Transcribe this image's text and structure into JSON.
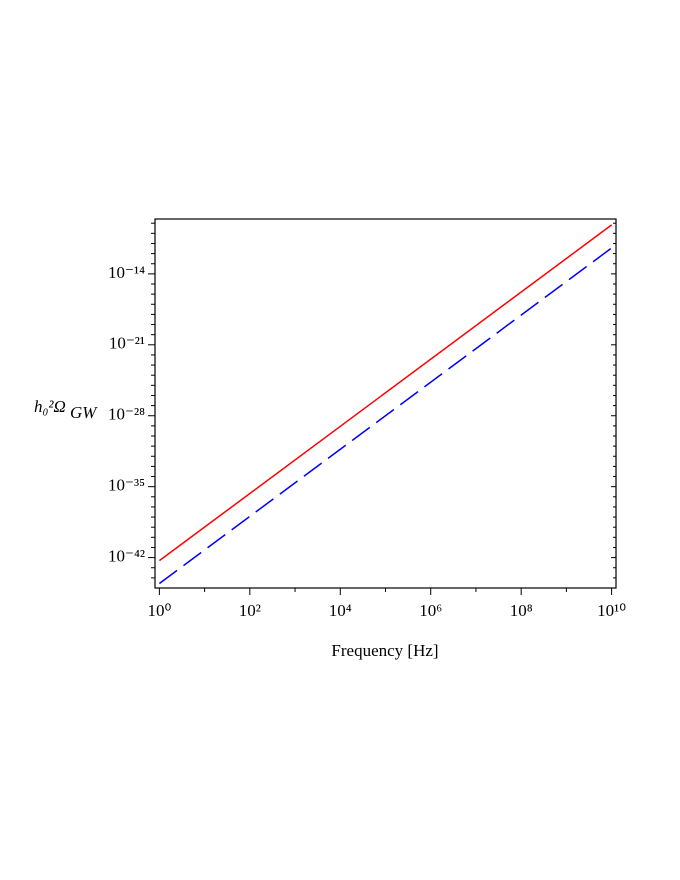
{
  "chart_data": {
    "type": "line",
    "xlabel": "Frequency  [Hz]",
    "ylabel": "h₀²Ω",
    "ylabel_sub": "GW",
    "x": [
      1,
      10000000000
    ],
    "series": [
      {
        "name": "solid",
        "color": "#ff0000",
        "dash": "none",
        "values": [
          5e-43,
          6.8e-10
        ]
      },
      {
        "name": "dashed",
        "color": "#0000ff",
        "dash": "22,8",
        "values": [
          2.8e-45,
          3.6e-12
        ]
      }
    ],
    "xscale": "log",
    "yscale": "log",
    "xlim": [
      0.8,
      12500000000
    ],
    "ylim": [
      1e-45,
      2.6e-09
    ],
    "xticks": [
      {
        "value": 1,
        "label": "10⁰"
      },
      {
        "value": 100,
        "label": "10²"
      },
      {
        "value": 10000,
        "label": "10⁴"
      },
      {
        "value": 1000000,
        "label": "10⁶"
      },
      {
        "value": 100000000,
        "label": "10⁸"
      },
      {
        "value": 10000000000,
        "label": "10¹⁰"
      }
    ],
    "xminor": [
      10,
      1000,
      100000,
      10000000,
      1000000000
    ],
    "yticks": [
      {
        "value": 1e-14,
        "label": "10⁻¹⁴"
      },
      {
        "value": 1e-21,
        "label": "10⁻²¹"
      },
      {
        "value": 1e-28,
        "label": "10⁻²⁸"
      },
      {
        "value": 1e-35,
        "label": "10⁻³⁵"
      },
      {
        "value": 1e-42,
        "label": "10⁻⁴²"
      }
    ],
    "yminor": [
      1e-44,
      1e-43,
      1e-41,
      1e-40,
      1e-39,
      1e-38,
      1e-37,
      1e-36,
      1e-34,
      1e-33,
      1e-32,
      1e-31,
      1e-30,
      1e-29,
      1e-27,
      1e-26,
      1e-25,
      1e-24,
      1e-23,
      1e-22,
      1e-20,
      1e-19,
      1e-18,
      1e-17,
      1e-16,
      1e-15,
      1e-13,
      1e-12,
      1e-11,
      1e-10,
      1e-09
    ],
    "grid": false,
    "legend": false
  }
}
